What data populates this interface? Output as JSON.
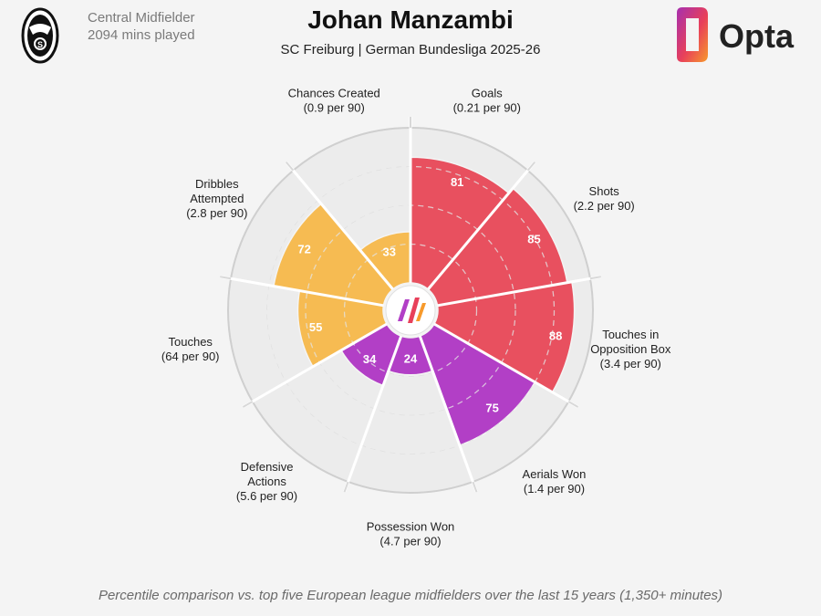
{
  "header": {
    "position": "Central Midfielder",
    "minutes": "2094 mins played",
    "title": "Johan Manzambi",
    "subtitle": "SC Freiburg | German Bundesliga 2025-26",
    "opta_logo_text": "Opta"
  },
  "footnote": "Percentile comparison vs. top five European league midfielders over the last 15 years (1,350+ minutes)",
  "colors": {
    "attack": "#e8505f",
    "possession": "#f6bb52",
    "defence": "#b23fc6",
    "background_wedge": "#ececec",
    "grid": "#d6d6d6"
  },
  "chart_data": {
    "type": "polar-bar",
    "title": "Johan Manzambi",
    "rlim": [
      0,
      100
    ],
    "categories": [
      {
        "name_lines": [
          "Goals"
        ],
        "rate": "(0.21 per 90)",
        "value": 81,
        "group": "attack"
      },
      {
        "name_lines": [
          "Shots"
        ],
        "rate": "(2.2 per 90)",
        "value": 85,
        "group": "attack"
      },
      {
        "name_lines": [
          "Touches in",
          "Opposition Box"
        ],
        "rate": "(3.4 per 90)",
        "value": 88,
        "group": "attack"
      },
      {
        "name_lines": [
          "Aerials Won"
        ],
        "rate": "(1.4 per 90)",
        "value": 75,
        "group": "defence"
      },
      {
        "name_lines": [
          "Possession Won"
        ],
        "rate": "(4.7 per 90)",
        "value": 24,
        "group": "defence"
      },
      {
        "name_lines": [
          "Defensive",
          "Actions"
        ],
        "rate": "(5.6 per 90)",
        "value": 34,
        "group": "defence"
      },
      {
        "name_lines": [
          "Touches"
        ],
        "rate": "(64 per 90)",
        "value": 55,
        "group": "possession"
      },
      {
        "name_lines": [
          "Dribbles",
          "Attempted"
        ],
        "rate": "(2.8 per 90)",
        "value": 72,
        "group": "possession"
      },
      {
        "name_lines": [
          "Chances Created"
        ],
        "rate": "(0.9 per 90)",
        "value": 33,
        "group": "possession"
      }
    ]
  }
}
